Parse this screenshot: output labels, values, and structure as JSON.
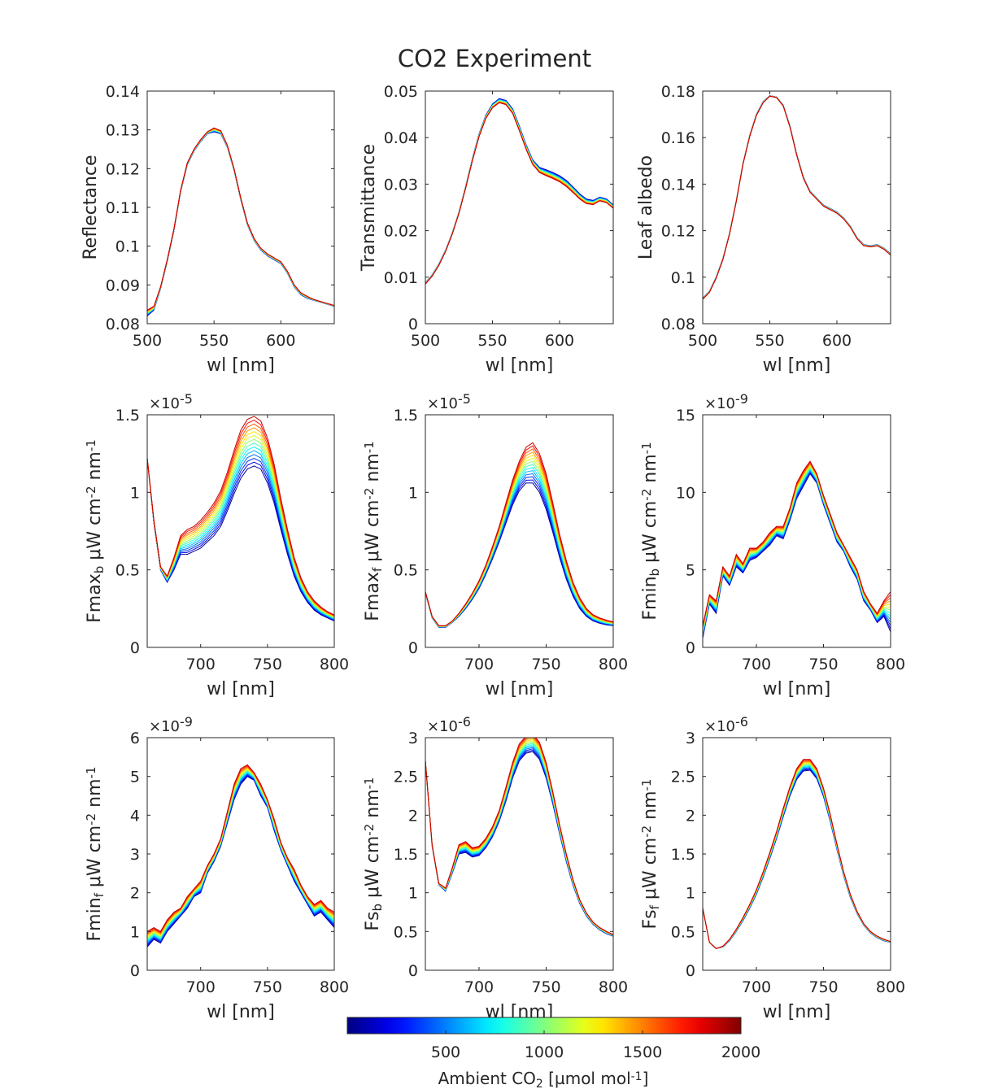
{
  "figure": {
    "title": "CO2 Experiment",
    "colorbar": {
      "label_main": "Ambient CO",
      "label_sub": "2",
      "label_unit_open": " [µmol mol",
      "label_unit_sup": "-1",
      "label_unit_close": "]",
      "ticks": [
        "500",
        "1000",
        "1500",
        "2000"
      ],
      "range": [
        0,
        2000
      ],
      "colormap": "jet"
    }
  },
  "chart_data": [
    {
      "type": "line",
      "id": "reflectance",
      "xlabel": "wl [nm]",
      "ylabel": "Reflectance",
      "xlim": [
        500,
        640
      ],
      "ylim": [
        0.08,
        0.14
      ],
      "xticks": [
        "500",
        "550",
        "600"
      ],
      "yticks": [
        "0.08",
        "0.09",
        "0.1",
        "0.11",
        "0.12",
        "0.13",
        "0.14"
      ],
      "exponent": "",
      "x": [
        500,
        505,
        510,
        515,
        520,
        525,
        530,
        535,
        540,
        545,
        550,
        555,
        560,
        565,
        570,
        575,
        580,
        585,
        590,
        595,
        600,
        605,
        610,
        615,
        620,
        625,
        630,
        635,
        640
      ],
      "co2_levels": [
        0,
        2000
      ],
      "series": [
        {
          "values": [
            0.082,
            0.0835,
            0.089,
            0.096,
            0.104,
            0.114,
            0.121,
            0.1245,
            0.127,
            0.129,
            0.1295,
            0.129,
            0.1255,
            0.1195,
            0.112,
            0.1055,
            0.1015,
            0.099,
            0.0975,
            0.0965,
            0.0955,
            0.093,
            0.0895,
            0.0875,
            0.0865,
            0.086,
            0.0855,
            0.085,
            0.0845
          ]
        },
        {
          "values": [
            0.0835,
            0.0845,
            0.0895,
            0.0965,
            0.1045,
            0.1145,
            0.1215,
            0.125,
            0.1275,
            0.1295,
            0.1305,
            0.1298,
            0.126,
            0.12,
            0.1125,
            0.106,
            0.102,
            0.0995,
            0.098,
            0.097,
            0.096,
            0.0935,
            0.09,
            0.088,
            0.087,
            0.0862,
            0.0857,
            0.0852,
            0.0847
          ]
        }
      ]
    },
    {
      "type": "line",
      "id": "transmittance",
      "xlabel": "wl [nm]",
      "ylabel": "Transmittance",
      "xlim": [
        500,
        640
      ],
      "ylim": [
        0,
        0.05
      ],
      "xticks": [
        "500",
        "550",
        "600"
      ],
      "yticks": [
        "0",
        "0.01",
        "0.02",
        "0.03",
        "0.04",
        "0.05"
      ],
      "exponent": "",
      "x": [
        500,
        505,
        510,
        515,
        520,
        525,
        530,
        535,
        540,
        545,
        550,
        555,
        560,
        565,
        570,
        575,
        580,
        585,
        590,
        595,
        600,
        605,
        610,
        615,
        620,
        625,
        630,
        635,
        640
      ],
      "co2_levels": [
        0,
        2000
      ],
      "series": [
        {
          "values": [
            0.0088,
            0.0105,
            0.0128,
            0.0158,
            0.0195,
            0.024,
            0.0295,
            0.0355,
            0.0408,
            0.0448,
            0.0472,
            0.0484,
            0.048,
            0.0462,
            0.0425,
            0.0385,
            0.0352,
            0.0336,
            0.0331,
            0.0325,
            0.0318,
            0.0308,
            0.0294,
            0.0279,
            0.0268,
            0.0265,
            0.0272,
            0.0268,
            0.0255
          ]
        },
        {
          "values": [
            0.0085,
            0.0102,
            0.0125,
            0.0155,
            0.0192,
            0.0237,
            0.0291,
            0.035,
            0.0402,
            0.0441,
            0.0464,
            0.0475,
            0.0471,
            0.0452,
            0.0415,
            0.0375,
            0.0342,
            0.0325,
            0.0318,
            0.0312,
            0.0305,
            0.0295,
            0.0282,
            0.0268,
            0.0258,
            0.0256,
            0.0264,
            0.026,
            0.0248
          ]
        }
      ]
    },
    {
      "type": "line",
      "id": "leaf-albedo",
      "xlabel": "wl [nm]",
      "ylabel": "Leaf albedo",
      "xlim": [
        500,
        640
      ],
      "ylim": [
        0.08,
        0.18
      ],
      "xticks": [
        "500",
        "550",
        "600"
      ],
      "yticks": [
        "0.08",
        "0.1",
        "0.12",
        "0.14",
        "0.16",
        "0.18"
      ],
      "exponent": "",
      "x": [
        500,
        505,
        510,
        515,
        520,
        525,
        530,
        535,
        540,
        545,
        550,
        555,
        560,
        565,
        570,
        575,
        580,
        585,
        590,
        595,
        600,
        605,
        610,
        615,
        620,
        625,
        630,
        635,
        640
      ],
      "co2_levels": [
        0,
        2000
      ],
      "series": [
        {
          "values": [
            0.091,
            0.094,
            0.1,
            0.108,
            0.119,
            0.133,
            0.149,
            0.161,
            0.17,
            0.1755,
            0.178,
            0.1775,
            0.174,
            0.165,
            0.153,
            0.143,
            0.137,
            0.134,
            0.131,
            0.1295,
            0.128,
            0.1255,
            0.122,
            0.117,
            0.114,
            0.1135,
            0.114,
            0.1125,
            0.11
          ]
        },
        {
          "values": [
            0.0905,
            0.0935,
            0.0995,
            0.1075,
            0.1185,
            0.1325,
            0.1485,
            0.1605,
            0.1695,
            0.175,
            0.1778,
            0.1772,
            0.1736,
            0.1645,
            0.1525,
            0.1425,
            0.1365,
            0.1335,
            0.1305,
            0.129,
            0.1275,
            0.125,
            0.1215,
            0.1165,
            0.1135,
            0.113,
            0.1135,
            0.112,
            0.1095
          ]
        }
      ]
    },
    {
      "type": "line",
      "id": "fmax-b",
      "xlabel": "wl [nm]",
      "ylabel_main": "Fmax",
      "ylabel_sub": "b",
      "ylabel_unit": " μW cm",
      "ylabel_sup1": "-2",
      "ylabel_mid": " nm",
      "ylabel_sup2": "-1",
      "xlim": [
        660,
        800
      ],
      "ylim": [
        0,
        1.5
      ],
      "xticks": [
        "700",
        "750",
        "800"
      ],
      "yticks": [
        "0",
        "0.5",
        "1",
        "1.5"
      ],
      "exponent": "×10",
      "exponent_power": "-5",
      "x": [
        660,
        665,
        670,
        675,
        680,
        685,
        690,
        695,
        700,
        705,
        710,
        715,
        720,
        725,
        730,
        735,
        740,
        745,
        750,
        755,
        760,
        765,
        770,
        775,
        780,
        785,
        790,
        795,
        800
      ],
      "co2_levels": [
        0,
        2000
      ],
      "series": [
        {
          "values": [
            1.22,
            0.8,
            0.5,
            0.42,
            0.5,
            0.6,
            0.6,
            0.62,
            0.64,
            0.68,
            0.72,
            0.78,
            0.88,
            0.99,
            1.09,
            1.15,
            1.17,
            1.15,
            1.06,
            0.93,
            0.76,
            0.6,
            0.46,
            0.36,
            0.29,
            0.24,
            0.21,
            0.19,
            0.17
          ]
        },
        {
          "values": [
            1.22,
            0.82,
            0.52,
            0.46,
            0.58,
            0.72,
            0.76,
            0.78,
            0.82,
            0.87,
            0.93,
            1.01,
            1.13,
            1.27,
            1.4,
            1.47,
            1.49,
            1.46,
            1.35,
            1.18,
            0.96,
            0.76,
            0.58,
            0.45,
            0.36,
            0.3,
            0.26,
            0.23,
            0.21
          ]
        }
      ]
    },
    {
      "type": "line",
      "id": "fmax-f",
      "xlabel": "wl [nm]",
      "ylabel_main": "Fmax",
      "ylabel_sub": "f",
      "ylabel_unit": " μW cm",
      "ylabel_sup1": "-2",
      "ylabel_mid": " nm",
      "ylabel_sup2": "-1",
      "xlim": [
        660,
        800
      ],
      "ylim": [
        0,
        1.5
      ],
      "xticks": [
        "700",
        "750",
        "800"
      ],
      "yticks": [
        "0",
        "0.5",
        "1",
        "1.5"
      ],
      "exponent": "×10",
      "exponent_power": "-5",
      "x": [
        660,
        665,
        670,
        675,
        680,
        685,
        690,
        695,
        700,
        705,
        710,
        715,
        720,
        725,
        730,
        735,
        740,
        745,
        750,
        755,
        760,
        765,
        770,
        775,
        780,
        785,
        790,
        795,
        800
      ],
      "co2_levels": [
        0,
        2000
      ],
      "series": [
        {
          "values": [
            0.35,
            0.19,
            0.13,
            0.13,
            0.16,
            0.2,
            0.25,
            0.31,
            0.38,
            0.47,
            0.57,
            0.68,
            0.8,
            0.92,
            1.01,
            1.06,
            1.06,
            1.0,
            0.89,
            0.74,
            0.58,
            0.44,
            0.33,
            0.25,
            0.2,
            0.17,
            0.155,
            0.145,
            0.14
          ]
        },
        {
          "values": [
            0.36,
            0.2,
            0.14,
            0.14,
            0.17,
            0.22,
            0.28,
            0.35,
            0.43,
            0.53,
            0.65,
            0.78,
            0.93,
            1.08,
            1.2,
            1.29,
            1.32,
            1.25,
            1.12,
            0.93,
            0.73,
            0.56,
            0.42,
            0.32,
            0.25,
            0.21,
            0.19,
            0.175,
            0.165
          ]
        }
      ]
    },
    {
      "type": "line",
      "id": "fmin-b",
      "xlabel": "wl [nm]",
      "ylabel_main": "Fmin",
      "ylabel_sub": "b",
      "ylabel_unit": " μW cm",
      "ylabel_sup1": "-2",
      "ylabel_mid": " nm",
      "ylabel_sup2": "-1",
      "xlim": [
        660,
        800
      ],
      "ylim": [
        0,
        15
      ],
      "xticks": [
        "700",
        "750",
        "800"
      ],
      "yticks": [
        "0",
        "5",
        "10",
        "15"
      ],
      "exponent": "×10",
      "exponent_power": "-9",
      "x": [
        660,
        665,
        670,
        675,
        680,
        685,
        690,
        695,
        700,
        705,
        710,
        715,
        720,
        725,
        730,
        735,
        740,
        745,
        750,
        755,
        760,
        765,
        770,
        775,
        780,
        785,
        790,
        795,
        800
      ],
      "co2_levels": [
        0,
        2000
      ],
      "series": [
        {
          "values": [
            0.6,
            2.8,
            2.2,
            4.6,
            4.0,
            5.2,
            4.8,
            5.6,
            5.8,
            6.2,
            6.6,
            7.2,
            7.0,
            8.2,
            9.6,
            10.4,
            11.2,
            10.6,
            9.2,
            8.0,
            6.8,
            6.2,
            5.2,
            4.4,
            3.0,
            2.4,
            1.6,
            2.0,
            1.0
          ]
        },
        {
          "values": [
            1.4,
            3.4,
            3.0,
            5.2,
            4.6,
            6.0,
            5.4,
            6.4,
            6.4,
            6.8,
            7.4,
            7.8,
            7.8,
            9.0,
            10.6,
            11.4,
            12.0,
            11.2,
            9.8,
            8.6,
            7.4,
            6.6,
            5.8,
            5.0,
            3.6,
            2.8,
            2.2,
            3.0,
            3.6
          ]
        }
      ]
    },
    {
      "type": "line",
      "id": "fmin-f",
      "xlabel": "wl [nm]",
      "ylabel_main": "Fmin",
      "ylabel_sub": "f",
      "ylabel_unit": " μW cm",
      "ylabel_sup1": "-2",
      "ylabel_mid": " nm",
      "ylabel_sup2": "-1",
      "xlim": [
        660,
        800
      ],
      "ylim": [
        0,
        6
      ],
      "xticks": [
        "700",
        "750",
        "800"
      ],
      "yticks": [
        "0",
        "1",
        "2",
        "3",
        "4",
        "5",
        "6"
      ],
      "exponent": "×10",
      "exponent_power": "-9",
      "x": [
        660,
        665,
        670,
        675,
        680,
        685,
        690,
        695,
        700,
        705,
        710,
        715,
        720,
        725,
        730,
        735,
        740,
        745,
        750,
        755,
        760,
        765,
        770,
        775,
        780,
        785,
        790,
        795,
        800
      ],
      "co2_levels": [
        0,
        2000
      ],
      "series": [
        {
          "values": [
            0.6,
            0.8,
            0.7,
            1.0,
            1.2,
            1.4,
            1.6,
            1.9,
            2.0,
            2.5,
            2.8,
            3.2,
            3.8,
            4.4,
            4.8,
            5.0,
            4.9,
            4.5,
            4.2,
            3.6,
            3.1,
            2.7,
            2.3,
            2.0,
            1.7,
            1.4,
            1.5,
            1.3,
            1.1
          ]
        },
        {
          "values": [
            1.0,
            1.1,
            1.0,
            1.3,
            1.5,
            1.6,
            1.9,
            2.1,
            2.3,
            2.7,
            3.0,
            3.4,
            4.1,
            4.8,
            5.2,
            5.3,
            5.1,
            4.8,
            4.4,
            3.9,
            3.3,
            2.9,
            2.6,
            2.2,
            1.9,
            1.7,
            1.8,
            1.6,
            1.5
          ]
        }
      ]
    },
    {
      "type": "line",
      "id": "fs-b",
      "xlabel": "wl [nm]",
      "ylabel_main": "Fs",
      "ylabel_sub": "b",
      "ylabel_unit": " μW cm",
      "ylabel_sup1": "-2",
      "ylabel_mid": " nm",
      "ylabel_sup2": "-1",
      "xlim": [
        660,
        800
      ],
      "ylim": [
        0,
        3
      ],
      "xticks": [
        "700",
        "750",
        "800"
      ],
      "yticks": [
        "0",
        "0.5",
        "1",
        "1.5",
        "2",
        "2.5",
        "3"
      ],
      "exponent": "×10",
      "exponent_power": "-6",
      "x": [
        660,
        665,
        670,
        675,
        680,
        685,
        690,
        695,
        700,
        705,
        710,
        715,
        720,
        725,
        730,
        735,
        740,
        745,
        750,
        755,
        760,
        765,
        770,
        775,
        780,
        785,
        790,
        795,
        800
      ],
      "co2_levels": [
        0,
        2000
      ],
      "series": [
        {
          "values": [
            2.7,
            1.6,
            1.1,
            1.02,
            1.25,
            1.5,
            1.52,
            1.46,
            1.48,
            1.58,
            1.72,
            1.92,
            2.18,
            2.48,
            2.7,
            2.8,
            2.82,
            2.72,
            2.48,
            2.14,
            1.76,
            1.4,
            1.1,
            0.86,
            0.7,
            0.59,
            0.52,
            0.47,
            0.44
          ]
        },
        {
          "values": [
            2.7,
            1.62,
            1.12,
            1.06,
            1.32,
            1.62,
            1.66,
            1.58,
            1.6,
            1.7,
            1.85,
            2.06,
            2.36,
            2.68,
            2.92,
            3.02,
            3.05,
            2.94,
            2.68,
            2.3,
            1.88,
            1.5,
            1.17,
            0.91,
            0.74,
            0.62,
            0.55,
            0.5,
            0.46
          ]
        }
      ]
    },
    {
      "type": "line",
      "id": "fs-f",
      "xlabel": "wl [nm]",
      "ylabel_main": "Fs",
      "ylabel_sub": "f",
      "ylabel_unit": " μW cm",
      "ylabel_sup1": "-2",
      "ylabel_mid": " nm",
      "ylabel_sup2": "-1",
      "xlim": [
        660,
        800
      ],
      "ylim": [
        0,
        3
      ],
      "xticks": [
        "700",
        "750",
        "800"
      ],
      "yticks": [
        "0",
        "0.5",
        "1",
        "1.5",
        "2",
        "2.5",
        "3"
      ],
      "exponent": "×10",
      "exponent_power": "-6",
      "x": [
        660,
        665,
        670,
        675,
        680,
        685,
        690,
        695,
        700,
        705,
        710,
        715,
        720,
        725,
        730,
        735,
        740,
        745,
        750,
        755,
        760,
        765,
        770,
        775,
        780,
        785,
        790,
        795,
        800
      ],
      "co2_levels": [
        0,
        2000
      ],
      "series": [
        {
          "values": [
            0.8,
            0.36,
            0.28,
            0.3,
            0.38,
            0.5,
            0.64,
            0.8,
            0.98,
            1.2,
            1.44,
            1.7,
            1.98,
            2.25,
            2.46,
            2.57,
            2.58,
            2.47,
            2.24,
            1.92,
            1.56,
            1.22,
            0.94,
            0.73,
            0.58,
            0.48,
            0.42,
            0.38,
            0.36
          ]
        },
        {
          "values": [
            0.8,
            0.36,
            0.28,
            0.31,
            0.4,
            0.53,
            0.68,
            0.85,
            1.04,
            1.27,
            1.52,
            1.79,
            2.09,
            2.37,
            2.6,
            2.72,
            2.72,
            2.6,
            2.35,
            2.01,
            1.63,
            1.27,
            0.98,
            0.76,
            0.6,
            0.5,
            0.44,
            0.4,
            0.37
          ]
        }
      ]
    }
  ]
}
